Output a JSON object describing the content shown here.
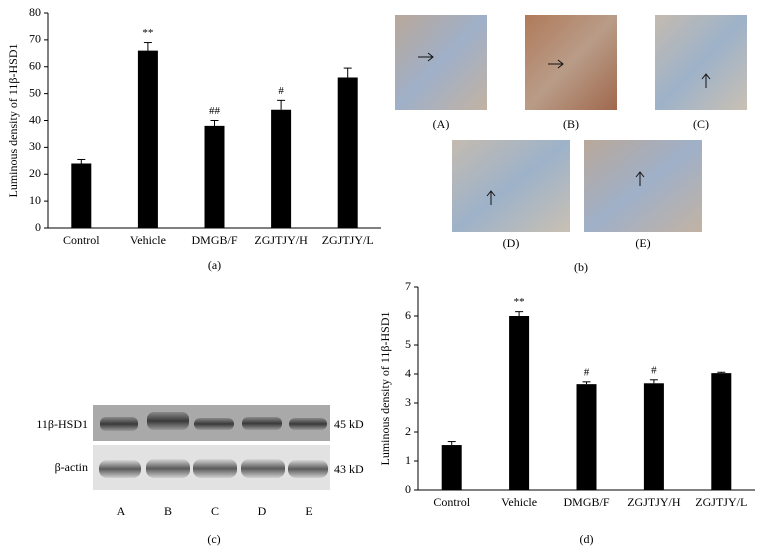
{
  "chart_data": [
    {
      "type": "bar",
      "ylabel": "Luminous density of 11β-HSD1",
      "categories": [
        "Control",
        "Vehicle",
        "DMGB/F",
        "ZGJTJY/H",
        "ZGJTJY/L"
      ],
      "values": [
        24,
        66,
        38,
        44,
        56
      ],
      "errors": [
        1.5,
        3,
        2,
        3.5,
        3.5
      ],
      "annotations": [
        null,
        "**",
        "##",
        "#",
        null
      ],
      "color": "#000000",
      "ylim": [
        0,
        80
      ],
      "yticks": [
        0,
        10,
        20,
        30,
        40,
        50,
        60,
        70,
        80
      ],
      "panel_label": "(a)"
    },
    {
      "type": "bar",
      "ylabel": "Luminous density of 11β-HSD1",
      "categories": [
        "Control",
        "Vehicle",
        "DMGB/F",
        "ZGJTJY/H",
        "ZGJTJY/L"
      ],
      "values": [
        1.55,
        6.0,
        3.65,
        3.68,
        4.03
      ],
      "errors": [
        0.12,
        0.15,
        0.08,
        0.12,
        0.03
      ],
      "annotations": [
        null,
        "**",
        "#",
        "#",
        null
      ],
      "color": "#000000",
      "ylim": [
        0,
        7
      ],
      "yticks": [
        0,
        1,
        2,
        3,
        4,
        5,
        6,
        7
      ],
      "panel_label": "(d)"
    }
  ],
  "micrographs": {
    "labels": [
      "(A)",
      "(B)",
      "(C)",
      "(D)",
      "(E)"
    ],
    "panel_label": "(b)"
  },
  "western_blot": {
    "rows": [
      {
        "label": "11β-HSD1",
        "size": "45 kD"
      },
      {
        "label": "β-actin",
        "size": "43 kD"
      }
    ],
    "lanes": [
      "A",
      "B",
      "C",
      "D",
      "E"
    ],
    "panel_label": "(c)"
  }
}
